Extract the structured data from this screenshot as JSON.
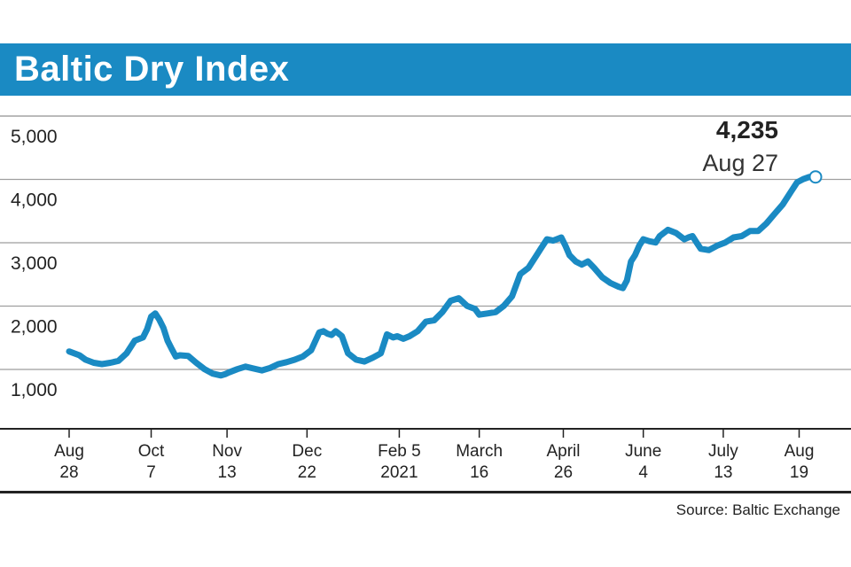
{
  "title": "Baltic Dry Index",
  "source": "Source: Baltic Exchange",
  "colors": {
    "accent": "#1a8ac3",
    "line": "#1a8ac3",
    "grid": "#9e9e9e",
    "axis": "#222222",
    "text": "#222222"
  },
  "chart_data": {
    "type": "line",
    "title": "Baltic Dry Index",
    "xlabel": "",
    "ylabel": "",
    "ylim": [
      500,
      5500
    ],
    "yticks": [
      "5,000",
      "4,000",
      "3,000",
      "2,000",
      "1,000"
    ],
    "ytick_values": [
      5000,
      4000,
      3000,
      2000,
      1000
    ],
    "xticks": [
      {
        "line1": "Aug",
        "line2": "28",
        "day": 0
      },
      {
        "line1": "Oct",
        "line2": "7",
        "day": 40
      },
      {
        "line1": "Nov",
        "line2": "13",
        "day": 77
      },
      {
        "line1": "Dec",
        "line2": "22",
        "day": 116
      },
      {
        "line1": "Feb 5",
        "line2": "2021",
        "day": 161
      },
      {
        "line1": "March",
        "line2": "16",
        "day": 200
      },
      {
        "line1": "April",
        "line2": "26",
        "day": 241
      },
      {
        "line1": "June",
        "line2": "4",
        "day": 280
      },
      {
        "line1": "July",
        "line2": "13",
        "day": 319
      },
      {
        "line1": "Aug",
        "line2": "19",
        "day": 356
      }
    ],
    "xrange": [
      0,
      364
    ],
    "annotation": {
      "value": "4,235",
      "date": "Aug 27",
      "day": 364,
      "y": 4235
    },
    "series": [
      {
        "name": "Baltic Dry Index",
        "x": [
          0,
          5,
          8,
          12,
          16,
          20,
          24,
          28,
          32,
          36,
          38,
          40,
          42,
          44,
          46,
          48,
          50,
          52,
          54,
          58,
          62,
          66,
          70,
          74,
          76,
          78,
          82,
          86,
          90,
          94,
          98,
          102,
          106,
          110,
          114,
          118,
          122,
          124,
          126,
          128,
          130,
          133,
          136,
          140,
          144,
          148,
          152,
          155,
          158,
          160,
          163,
          166,
          170,
          174,
          178,
          182,
          186,
          190,
          194,
          198,
          200,
          204,
          208,
          212,
          216,
          220,
          224,
          226,
          228,
          230,
          233,
          236,
          240,
          242,
          244,
          247,
          250,
          253,
          256,
          260,
          264,
          268,
          270,
          272,
          274,
          276,
          278,
          280,
          283,
          286,
          288,
          292,
          296,
          300,
          302,
          304,
          306,
          308,
          312,
          316,
          320,
          324,
          328,
          332,
          336,
          340,
          344,
          348,
          352,
          355,
          358,
          361,
          364
        ],
        "y": [
          1480,
          1420,
          1350,
          1300,
          1280,
          1300,
          1330,
          1450,
          1650,
          1700,
          1830,
          2030,
          2080,
          1980,
          1850,
          1650,
          1520,
          1400,
          1420,
          1410,
          1300,
          1200,
          1130,
          1100,
          1120,
          1150,
          1200,
          1240,
          1210,
          1180,
          1220,
          1280,
          1310,
          1350,
          1400,
          1500,
          1780,
          1800,
          1760,
          1740,
          1800,
          1720,
          1450,
          1350,
          1320,
          1380,
          1450,
          1750,
          1700,
          1720,
          1680,
          1720,
          1800,
          1950,
          1970,
          2100,
          2280,
          2320,
          2200,
          2150,
          2060,
          2080,
          2100,
          2200,
          2350,
          2700,
          2800,
          2900,
          3000,
          3100,
          3250,
          3230,
          3280,
          3150,
          3000,
          2900,
          2850,
          2900,
          2800,
          2650,
          2560,
          2500,
          2480,
          2600,
          2900,
          3000,
          3150,
          3250,
          3220,
          3200,
          3300,
          3400,
          3350,
          3250,
          3280,
          3300,
          3200,
          3100,
          3080,
          3150,
          3200,
          3280,
          3300,
          3380,
          3380,
          3500,
          3650,
          3800,
          4000,
          4150,
          4200,
          4235,
          4235
        ]
      }
    ]
  }
}
